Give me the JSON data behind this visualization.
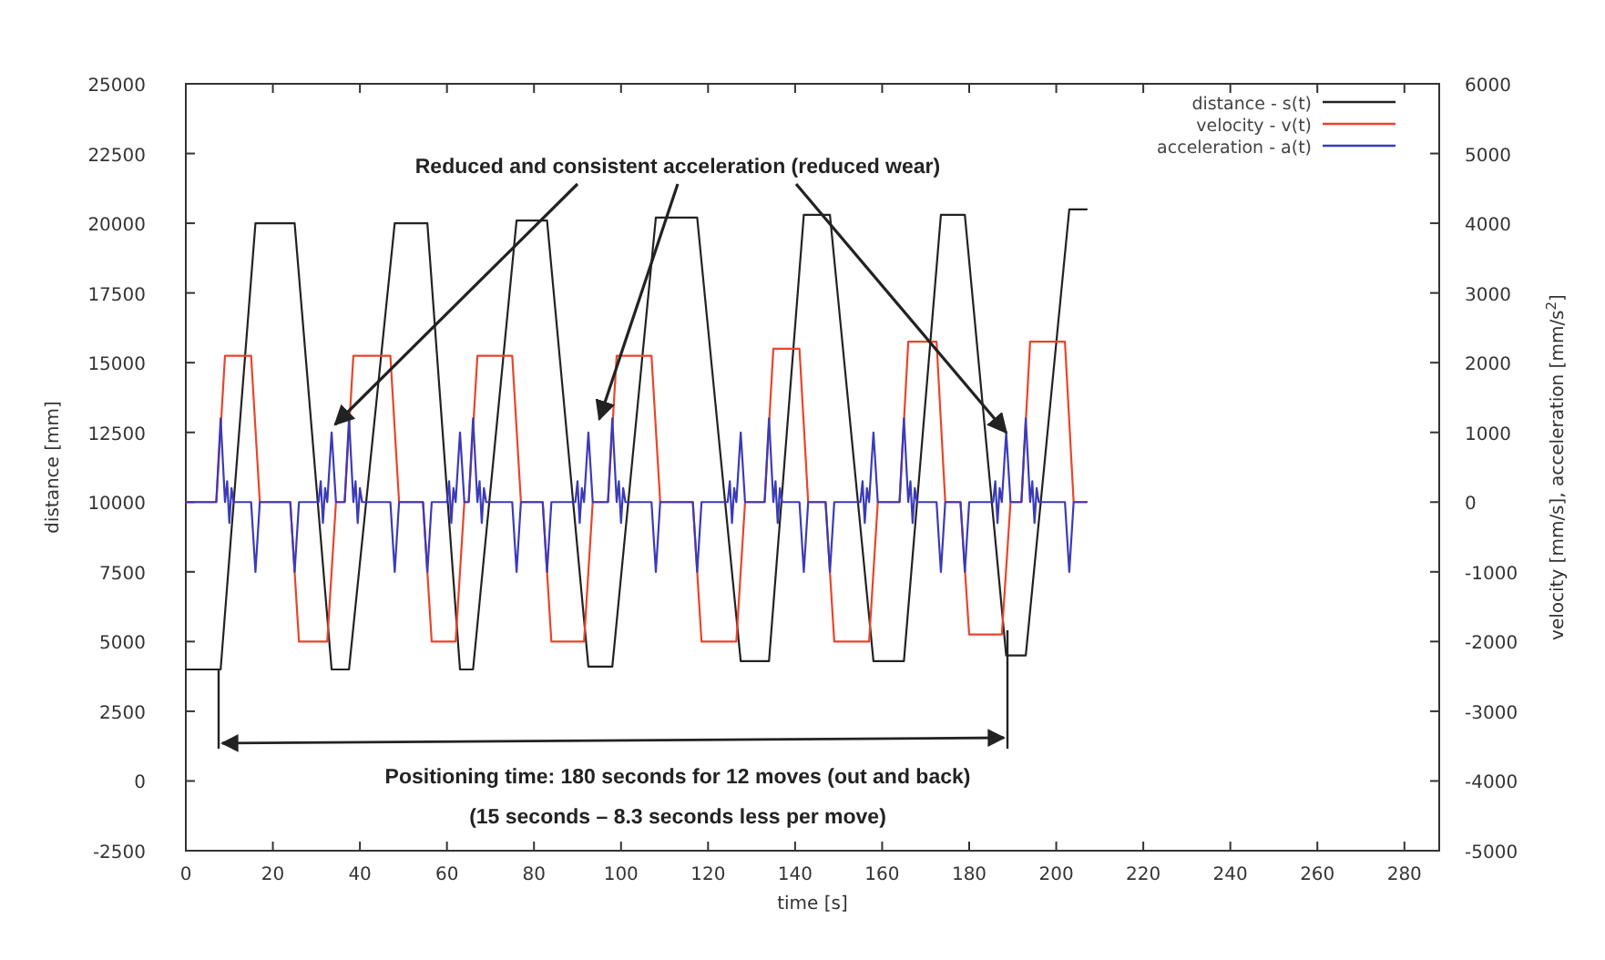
{
  "chart_data": {
    "type": "line",
    "xlabel": "time [s]",
    "ylabel": "distance [mm]",
    "y2label": "velocity [mm/s], acceleration [mm/s$^{2}$]",
    "xlim": [
      0,
      288
    ],
    "xticks": [
      0,
      20,
      40,
      60,
      80,
      100,
      120,
      140,
      160,
      180,
      200,
      220,
      240,
      260,
      280
    ],
    "ylim": [
      -2500,
      25000
    ],
    "yticks": [
      -2500,
      0,
      2500,
      5000,
      7500,
      10000,
      12500,
      15000,
      17500,
      20000,
      22500,
      25000
    ],
    "y2lim": [
      -5000,
      6000
    ],
    "y2ticks": [
      -5000,
      -4000,
      -3000,
      -2000,
      -1000,
      0,
      1000,
      2000,
      3000,
      4000,
      5000,
      6000
    ],
    "legend": "top right",
    "grid": false,
    "marker": "none",
    "annotations": [
      {
        "text": "Reduced and consistent acceleration (reduced wear)",
        "x": 188.5,
        "y": 12500
      },
      "Positioning time: 180 seconds for 12 moves (out and back)",
      "(15 seconds – 8.3 seconds less per move)"
    ],
    "series": [
      {
        "name": "distance - s(t)",
        "color": "#222222",
        "x": [
          0,
          8,
          16,
          25,
          33.5,
          37.5,
          48,
          55.5,
          63,
          66,
          76,
          83,
          92.5,
          98,
          108,
          117.5,
          127.5,
          134,
          142,
          148,
          158,
          165,
          173.5,
          179,
          188.5,
          193,
          203,
          207
        ],
        "values": [
          4000,
          4000,
          20000,
          20000,
          4000,
          4000,
          20000,
          20000,
          4000,
          4000,
          20100,
          20100,
          4100,
          4100,
          20200,
          20200,
          4300,
          4300,
          20300,
          20300,
          4300,
          4300,
          20300,
          20300,
          4500,
          4500,
          20500,
          20500
        ]
      },
      {
        "name": "velocity - v(t)",
        "color": "#e8452c",
        "axis": "y2",
        "x": [
          0,
          7,
          9,
          15,
          17,
          24,
          26,
          32.5,
          34.5,
          36.5,
          38.5,
          47,
          49,
          54.5,
          56.5,
          62,
          64,
          65,
          67,
          75,
          77,
          82,
          84,
          91.5,
          93.5,
          97,
          99,
          107,
          109,
          116.5,
          118.5,
          126.5,
          128.5,
          133,
          135,
          141,
          143,
          147,
          149,
          157,
          159,
          164,
          166,
          172.5,
          174.5,
          178,
          180,
          187.5,
          189.5,
          192,
          194,
          202,
          204,
          207
        ],
        "values": [
          0,
          0,
          2100,
          2100,
          0,
          0,
          -2000,
          -2000,
          0,
          0,
          2100,
          2100,
          0,
          0,
          -2000,
          -2000,
          0,
          0,
          2100,
          2100,
          0,
          0,
          -2000,
          -2000,
          0,
          0,
          2100,
          2100,
          0,
          0,
          -2000,
          -2000,
          0,
          0,
          2200,
          2200,
          0,
          0,
          -2000,
          -2000,
          0,
          0,
          2300,
          2300,
          0,
          0,
          -1900,
          -1900,
          0,
          0,
          2300,
          2300,
          0,
          0
        ]
      },
      {
        "name": "acceleration - a(t)",
        "color": "#3b3bb8",
        "axis": "y2",
        "x": [
          0,
          7,
          8,
          9,
          9.5,
          10,
          10.5,
          11,
          15,
          16,
          17,
          24,
          25,
          26,
          30.5,
          31,
          31.5,
          32,
          32.5,
          33.5,
          34.5,
          36.5,
          37.5,
          38.5,
          39,
          39.5,
          40,
          40.5,
          47,
          48,
          49,
          54.5,
          55.5,
          56.5,
          60,
          60.5,
          61,
          61.5,
          62,
          63,
          64,
          65,
          66,
          67,
          67.5,
          68,
          68.5,
          69,
          75,
          76,
          77,
          82,
          83,
          84,
          89.5,
          90,
          90.5,
          91,
          91.5,
          92.5,
          93.5,
          97,
          98,
          99,
          99.5,
          100,
          100.5,
          101,
          107,
          108,
          109,
          116.5,
          117.5,
          118.5,
          124.5,
          125,
          125.5,
          126,
          126.5,
          127.5,
          128.5,
          133,
          134,
          135,
          135.5,
          136,
          136.5,
          137,
          141,
          142,
          143,
          147,
          148,
          149,
          155,
          155.5,
          156,
          156.5,
          157,
          158,
          159,
          164,
          165,
          166,
          166.5,
          167,
          167.5,
          168,
          172.5,
          173.5,
          174.5,
          178,
          179,
          180,
          185.5,
          186,
          186.5,
          187,
          187.5,
          188.5,
          189.5,
          192,
          193,
          194,
          194.5,
          195,
          195.5,
          196,
          202,
          203,
          204,
          207
        ],
        "values": [
          0,
          0,
          1200,
          0,
          300,
          -300,
          200,
          0,
          0,
          -1000,
          0,
          0,
          -1000,
          0,
          0,
          300,
          -300,
          200,
          0,
          1000,
          0,
          0,
          1200,
          0,
          300,
          -300,
          200,
          0,
          0,
          -1000,
          0,
          0,
          -1000,
          0,
          0,
          300,
          -300,
          200,
          0,
          1000,
          0,
          0,
          1200,
          0,
          300,
          -300,
          200,
          0,
          0,
          -1000,
          0,
          0,
          -1000,
          0,
          0,
          300,
          -300,
          200,
          0,
          1000,
          0,
          0,
          1200,
          0,
          300,
          -300,
          200,
          0,
          0,
          -1000,
          0,
          0,
          -1000,
          0,
          0,
          300,
          -300,
          200,
          0,
          1000,
          0,
          0,
          1200,
          0,
          300,
          -300,
          200,
          0,
          0,
          -1000,
          0,
          0,
          -1000,
          0,
          0,
          300,
          -300,
          200,
          0,
          1000,
          0,
          0,
          1200,
          0,
          300,
          -300,
          200,
          0,
          0,
          -1000,
          0,
          0,
          -1000,
          0,
          0,
          300,
          -300,
          200,
          0,
          1000,
          0,
          0,
          1200,
          0,
          300,
          -300,
          200,
          0,
          0,
          -1000,
          0,
          0
        ]
      }
    ]
  }
}
